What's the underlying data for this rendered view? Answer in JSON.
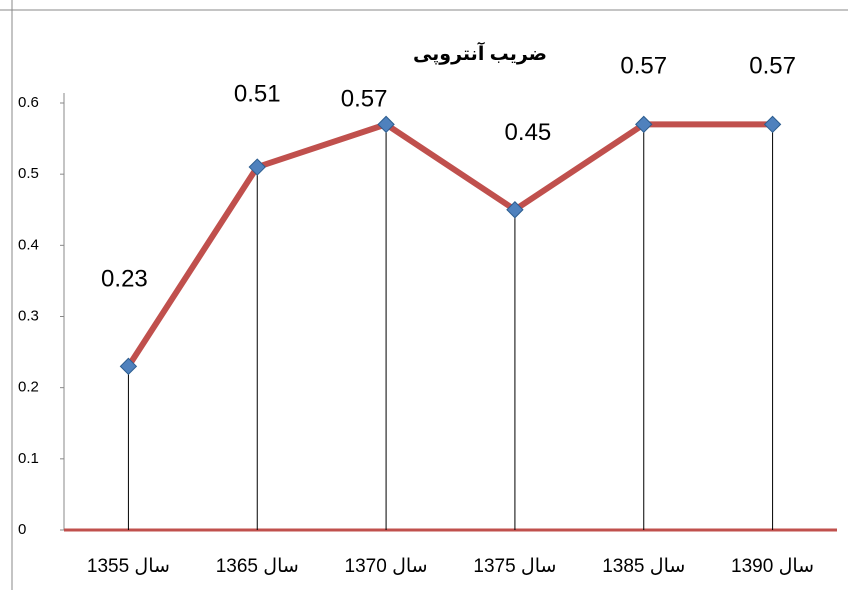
{
  "chart_data": {
    "type": "line",
    "title": "ضریب آنتروپی",
    "categories": [
      "سال 1355",
      "سال 1365",
      "سال 1370",
      "سال 1375",
      "سال 1385",
      "سال 1390"
    ],
    "values": [
      0.23,
      0.51,
      0.57,
      0.45,
      0.57,
      0.57
    ],
    "color": "#c0504d",
    "marker_color": "#4f81bd",
    "ylim": [
      0,
      0.6
    ],
    "yticks": [
      0,
      0.1,
      0.2,
      0.3,
      0.4,
      0.5,
      0.6
    ],
    "drop_lines": true,
    "grid": false
  }
}
